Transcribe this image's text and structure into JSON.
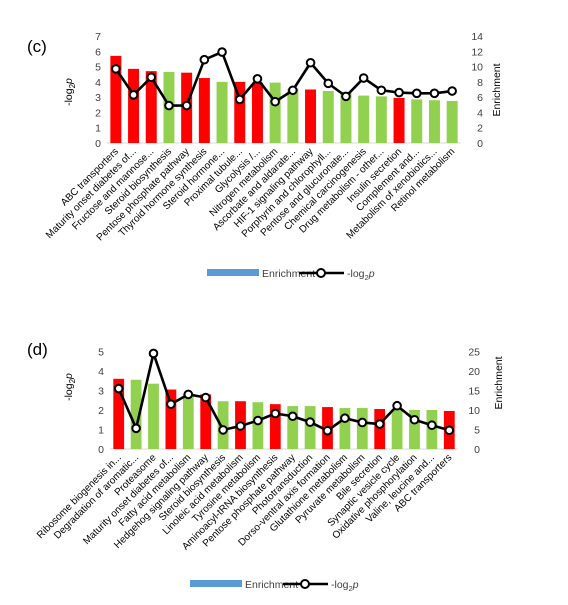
{
  "chart_data": [
    {
      "panel": "(c)",
      "type": "bar",
      "categories": [
        "ABC transporters",
        "Maturity onset diabetes of...",
        "Fructose and mannose...",
        "Steroid biosynthesis",
        "Pentose phosphate pathway",
        "Thyroid hormone synthesis",
        "Steroid hormone...",
        "Proximal tubule...",
        "Glycolysis /...",
        "Nitrogen metabolism",
        "Ascorbate and aldarate...",
        "HIF-1 signaling pathway",
        "Porphyrin and chlorophyll...",
        "Pentose and glucuronate...",
        "Chemical carcinogenesis",
        "Drug metabolism - other...",
        "Insulin secretion",
        "Complement and...",
        "Metabolism of xenobiotics...",
        "Retinol metabolism"
      ],
      "bar_colors": [
        "#ff0000",
        "#ff0000",
        "#ff0000",
        "#92d050",
        "#ff0000",
        "#ff0000",
        "#92d050",
        "#ff0000",
        "#ff0000",
        "#92d050",
        "#92d050",
        "#ff0000",
        "#92d050",
        "#92d050",
        "#92d050",
        "#92d050",
        "#ff0000",
        "#92d050",
        "#92d050",
        "#92d050"
      ],
      "series": [
        {
          "name": "-log2p",
          "axis": "left",
          "kind": "bar",
          "values": [
            5.7,
            4.85,
            4.7,
            4.65,
            4.6,
            4.25,
            4.0,
            4.0,
            3.95,
            3.95,
            3.55,
            3.5,
            3.4,
            3.35,
            3.1,
            3.05,
            2.95,
            2.85,
            2.8,
            2.75
          ]
        },
        {
          "name": "Enrichment",
          "axis": "right",
          "kind": "line",
          "values": [
            9.7,
            6.3,
            8.6,
            4.9,
            4.9,
            10.9,
            11.9,
            5.7,
            8.4,
            5.4,
            6.9,
            10.5,
            7.8,
            6.1,
            8.5,
            6.9,
            6.6,
            6.5,
            6.5,
            6.8
          ]
        }
      ],
      "ylabel": "-log₂p",
      "ylabel2": "Enrichment",
      "ylim": [
        0,
        7
      ],
      "y2lim": [
        0,
        14
      ],
      "yticks": [
        "0",
        "1",
        "2",
        "3",
        "4",
        "5",
        "6",
        "7"
      ],
      "y2ticks": [
        "0",
        "2",
        "4",
        "6",
        "8",
        "10",
        "12",
        "14"
      ],
      "legend": {
        "bar_label": "Enrichment",
        "line_label": "-log",
        "line_sub": "2",
        "line_suffix": "p",
        "bar_color": "#5b9bd5",
        "placement": "bottom"
      }
    },
    {
      "panel": "(d)",
      "type": "bar",
      "categories": [
        "Ribosome biogenesis in...",
        "Degradation of aromatic...",
        "Proteasome",
        "Maturity onset diabetes of...",
        "Fatty acid metabolism",
        "Hedgehog signaling pathway",
        "Steroid biosynthesis",
        "Linoleic acid metabolism",
        "Tyrosine metabolism",
        "Aminoacyl-tRNA biosynthesis",
        "Pentose phosphate pathway",
        "Phototransduction",
        "Dorso-ventral axis formation",
        "Glutathione metabolism",
        "Pyruvate metabolism",
        "Bile secretion",
        "Synaptic vesicle cycle",
        "Oxidative phosphorylation",
        "Valine, leucine and...",
        "ABC transporters"
      ],
      "bar_colors": [
        "#ff0000",
        "#92d050",
        "#92d050",
        "#ff0000",
        "#92d050",
        "#ff0000",
        "#92d050",
        "#ff0000",
        "#92d050",
        "#ff0000",
        "#92d050",
        "#92d050",
        "#ff0000",
        "#92d050",
        "#92d050",
        "#ff0000",
        "#92d050",
        "#92d050",
        "#92d050",
        "#ff0000"
      ],
      "series": [
        {
          "name": "-log2p",
          "axis": "left",
          "kind": "bar",
          "values": [
            3.6,
            3.55,
            3.35,
            3.05,
            2.85,
            2.8,
            2.45,
            2.45,
            2.4,
            2.3,
            2.2,
            2.2,
            2.15,
            2.1,
            2.1,
            2.05,
            2.05,
            2.0,
            2.0,
            1.95
          ]
        },
        {
          "name": "Enrichment",
          "axis": "right",
          "kind": "line",
          "values": [
            15.5,
            5.3,
            24.5,
            11.5,
            14.0,
            13.2,
            4.9,
            5.9,
            7.3,
            9.1,
            8.4,
            6.9,
            4.7,
            7.9,
            6.8,
            6.4,
            11.1,
            7.5,
            6.1,
            4.8
          ]
        }
      ],
      "ylabel": "-log₂p",
      "ylabel2": "Enrichment",
      "ylim": [
        0,
        6
      ],
      "y2lim": [
        0,
        30
      ],
      "yticks": [
        "0",
        "1",
        "2",
        "3",
        "4",
        "5"
      ],
      "y2ticks": [
        "0",
        "5",
        "10",
        "15",
        "20",
        "25"
      ],
      "legend": {
        "bar_label": "Enrichment",
        "line_label": "-log",
        "line_sub": "2",
        "line_suffix": "p",
        "bar_color": "#5b9bd5",
        "placement": "bottom"
      }
    }
  ]
}
